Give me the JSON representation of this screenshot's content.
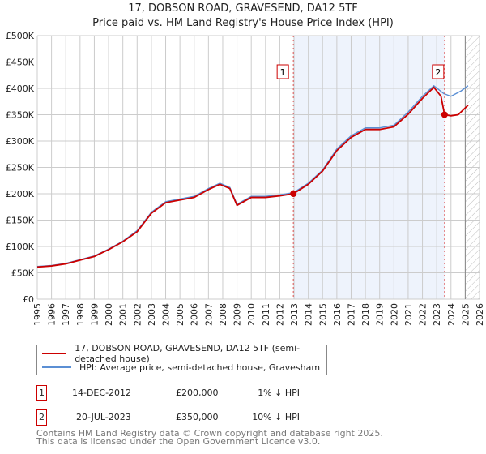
{
  "chart_data": {
    "type": "line",
    "title": "17, DOBSON ROAD, GRAVESEND, DA12 5TF",
    "subtitle": "Price paid vs. HM Land Registry's House Price Index (HPI)",
    "xlim": [
      1995,
      2026
    ],
    "ylim": [
      0,
      500000
    ],
    "yticks": [
      0,
      50000,
      100000,
      150000,
      200000,
      250000,
      300000,
      350000,
      400000,
      450000,
      500000
    ],
    "ytick_labels": [
      "£0",
      "£50K",
      "£100K",
      "£150K",
      "£200K",
      "£250K",
      "£300K",
      "£350K",
      "£400K",
      "£450K",
      "£500K"
    ],
    "xticks": [
      "1995",
      "1996",
      "1997",
      "1998",
      "1999",
      "2000",
      "2001",
      "2002",
      "2003",
      "2004",
      "2005",
      "2006",
      "2007",
      "2008",
      "2009",
      "2010",
      "2011",
      "2012",
      "2013",
      "2014",
      "2015",
      "2016",
      "2017",
      "2018",
      "2019",
      "2020",
      "2021",
      "2022",
      "2023",
      "2024",
      "2025",
      "2026"
    ],
    "grid": true,
    "shaded_period": [
      2012.95,
      2023.55
    ],
    "hatched_from": 2025.0,
    "series": [
      {
        "name": "17, DOBSON ROAD, GRAVESEND, DA12 5TF (semi-detached house)",
        "color": "#cc0000",
        "x": [
          1995,
          1996,
          1997,
          1998,
          1999,
          2000,
          2001,
          2002,
          2003,
          2004,
          2005,
          2006,
          2007,
          2007.8,
          2008.5,
          2009,
          2010,
          2011,
          2012,
          2012.95,
          2014,
          2015,
          2016,
          2017,
          2018,
          2019,
          2020,
          2021,
          2022,
          2022.8,
          2023.3,
          2023.55,
          2024,
          2024.5,
          2025.2
        ],
        "y": [
          61000,
          63000,
          67000,
          74000,
          81000,
          94000,
          109000,
          128000,
          163000,
          183000,
          188000,
          193000,
          208000,
          218000,
          210000,
          178000,
          193000,
          193000,
          196000,
          200000,
          218000,
          243000,
          282000,
          307000,
          322000,
          322000,
          327000,
          351000,
          381000,
          402000,
          385000,
          350000,
          348000,
          350000,
          368000
        ]
      },
      {
        "name": "HPI: Average price, semi-detached house, Gravesham",
        "color": "#5b8fd4",
        "x": [
          1995,
          1996,
          1997,
          1998,
          1999,
          2000,
          2001,
          2002,
          2003,
          2004,
          2005,
          2006,
          2007,
          2007.8,
          2008.5,
          2009,
          2010,
          2011,
          2012,
          2012.95,
          2014,
          2015,
          2016,
          2017,
          2018,
          2019,
          2020,
          2021,
          2022,
          2022.8,
          2023.5,
          2024,
          2024.7,
          2025.2
        ],
        "y": [
          62000,
          64000,
          68000,
          75000,
          82000,
          95000,
          110000,
          130000,
          165000,
          185000,
          190000,
          195000,
          210000,
          220000,
          212000,
          180000,
          195000,
          195000,
          198000,
          202000,
          220000,
          245000,
          285000,
          310000,
          325000,
          325000,
          330000,
          355000,
          385000,
          405000,
          390000,
          385000,
          395000,
          405000
        ]
      }
    ],
    "annotations": [
      {
        "label": "1",
        "x": 2012.95,
        "y": 200000
      },
      {
        "label": "2",
        "x": 2023.55,
        "y": 350000
      }
    ]
  },
  "legend": {
    "red": "17, DOBSON ROAD, GRAVESEND, DA12 5TF (semi-detached house)",
    "blue": "HPI: Average price, semi-detached house, Gravesham"
  },
  "transactions": [
    {
      "num": "1",
      "date": "14-DEC-2012",
      "price": "£200,000",
      "hpi": "1% ↓ HPI"
    },
    {
      "num": "2",
      "date": "20-JUL-2023",
      "price": "£350,000",
      "hpi": "10% ↓ HPI"
    }
  ],
  "footer": {
    "line1": "Contains HM Land Registry data © Crown copyright and database right 2025.",
    "line2": "This data is licensed under the Open Government Licence v3.0."
  }
}
